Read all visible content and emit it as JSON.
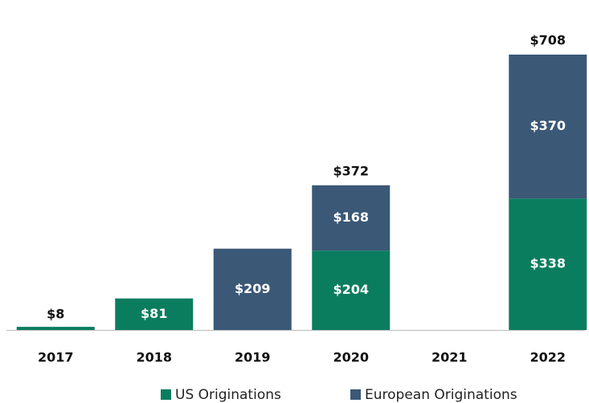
{
  "chart_data": {
    "type": "bar",
    "stacked": true,
    "categories": [
      "2017",
      "2018",
      "2019",
      "2020",
      "2021",
      "2022"
    ],
    "series": [
      {
        "name": "US Originations",
        "color": "#0a7d5f",
        "values": [
          8,
          81,
          null,
          204,
          null,
          338
        ],
        "value_labels": [
          "$8",
          "$81",
          null,
          "$204",
          null,
          "$338"
        ]
      },
      {
        "name": "European Originations",
        "color": "#3b5877",
        "values": [
          null,
          null,
          209,
          168,
          null,
          370
        ],
        "value_labels": [
          null,
          null,
          "$209",
          "$168",
          null,
          "$370"
        ]
      }
    ],
    "totals": [
      null,
      null,
      null,
      372,
      null,
      708
    ],
    "total_labels": [
      null,
      null,
      null,
      "$372",
      null,
      "$708"
    ]
  }
}
